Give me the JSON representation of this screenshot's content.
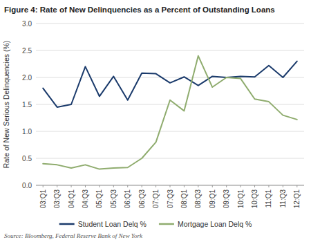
{
  "chart_data": {
    "type": "line",
    "title": "Figure 4: Rate of New Delinquencies as a Percent of Outstanding Loans",
    "y_label": "Rate of New Serious Delinquencies (%)",
    "annotations": [
      "Source: Bloomberg, Federal Reserve Bank of New York"
    ],
    "categories": [
      "03:Q1",
      "03:Q3",
      "04:Q1",
      "04:Q3",
      "05:Q1",
      "05:Q3",
      "06:Q1",
      "06:Q3",
      "07:Q1",
      "07:Q3",
      "08:Q1",
      "08:Q3",
      "09:Q1",
      "09:Q3",
      "10:Q1",
      "10:Q3",
      "11:Q1",
      "11:Q3",
      "12:Q1"
    ],
    "series": [
      {
        "name": "Student Loan Delq %",
        "color": "#1a3a6b",
        "values": [
          1.8,
          1.45,
          1.5,
          2.2,
          1.65,
          2.02,
          1.58,
          2.08,
          2.07,
          1.9,
          2.01,
          1.85,
          2.02,
          2.0,
          2.02,
          2.01,
          2.22,
          2.0,
          2.3
        ]
      },
      {
        "name": "Mortgage Loan Delq %",
        "color": "#8fac6e",
        "values": [
          0.4,
          0.38,
          0.32,
          0.38,
          0.3,
          0.32,
          0.33,
          0.5,
          0.8,
          1.58,
          1.38,
          2.4,
          1.82,
          2.0,
          1.98,
          1.6,
          1.55,
          1.3,
          1.22
        ]
      }
    ],
    "ylim": [
      0.0,
      3.0
    ],
    "yticks": [
      {
        "value": 0.0,
        "label": "0.0"
      },
      0.5,
      {
        "value": 1.0,
        "label": "1.0"
      },
      1.5,
      {
        "value": 2.0,
        "label": "2.0"
      },
      2.5,
      {
        "value": 3.0,
        "label": "3.0"
      }
    ],
    "grid": true,
    "legend": "bottom"
  }
}
